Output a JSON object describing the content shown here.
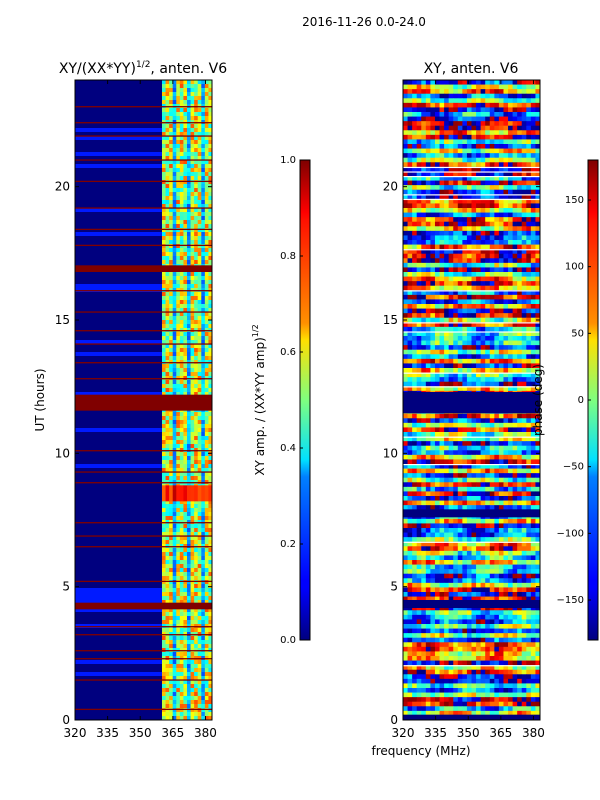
{
  "suptitle": "2016-11-26 0.0-24.0",
  "chart_data": [
    {
      "type": "heatmap",
      "title": "XY/(XX*YY)",
      "title_sup": "1/2",
      "title_suffix": ", anten. V6",
      "xlabel": "",
      "ylabel": "UT (hours)",
      "xlim": [
        320,
        383
      ],
      "ylim": [
        0,
        24
      ],
      "x_ticks": [
        320,
        335,
        350,
        365,
        380
      ],
      "y_ticks": [
        0,
        5,
        10,
        15,
        20
      ],
      "colorbar": {
        "label": "XY amp. / (XX*YY amp)",
        "label_sup": "1/2",
        "range": [
          0.0,
          1.0
        ],
        "ticks": [
          0.0,
          0.2,
          0.4,
          0.6,
          0.8,
          1.0
        ],
        "tick_labels": [
          "0.0",
          "0.2",
          "0.4",
          "0.6",
          "0.8",
          "1.0"
        ],
        "colormap": "jet"
      },
      "dark_band_split_mhz": 360,
      "saturated_bands_hours": [
        [
          11.6,
          12.2
        ],
        [
          4.15,
          4.4
        ],
        [
          16.8,
          17.05
        ]
      ],
      "thin_high_lines_hours": [
        0.4,
        1.5,
        2.3,
        2.6,
        3.2,
        3.5,
        5.2,
        6.5,
        6.9,
        7.4,
        8.9,
        9.3,
        10.1,
        12.8,
        13.4,
        14.1,
        14.6,
        15.3,
        16.1,
        17.8,
        18.4,
        19.2,
        20.2,
        21.0,
        21.9,
        22.4,
        23.0
      ]
    },
    {
      "type": "heatmap",
      "title": "XY, anten. V6",
      "xlabel": "frequency (MHz)",
      "ylabel": "",
      "xlim": [
        320,
        383
      ],
      "ylim": [
        0,
        24
      ],
      "x_ticks": [
        320,
        335,
        350,
        365,
        380
      ],
      "y_ticks": [
        0,
        5,
        10,
        15,
        20
      ],
      "colorbar": {
        "label": "phase (deg)",
        "range": [
          -180,
          180
        ],
        "ticks": [
          -150,
          -100,
          -50,
          0,
          50,
          100,
          150
        ],
        "tick_labels": [
          "−150",
          "−100",
          "−50",
          "0",
          "50",
          "100",
          "150"
        ],
        "colormap": "jet"
      },
      "dark_band_hours": [
        [
          11.5,
          12.3
        ],
        [
          4.2,
          4.5
        ],
        [
          0.0,
          0.2
        ],
        [
          7.6,
          7.9
        ]
      ]
    }
  ],
  "colors": {
    "jet_low": "#00007f",
    "jet_high": "#7f0000",
    "saturated": "#800000"
  }
}
